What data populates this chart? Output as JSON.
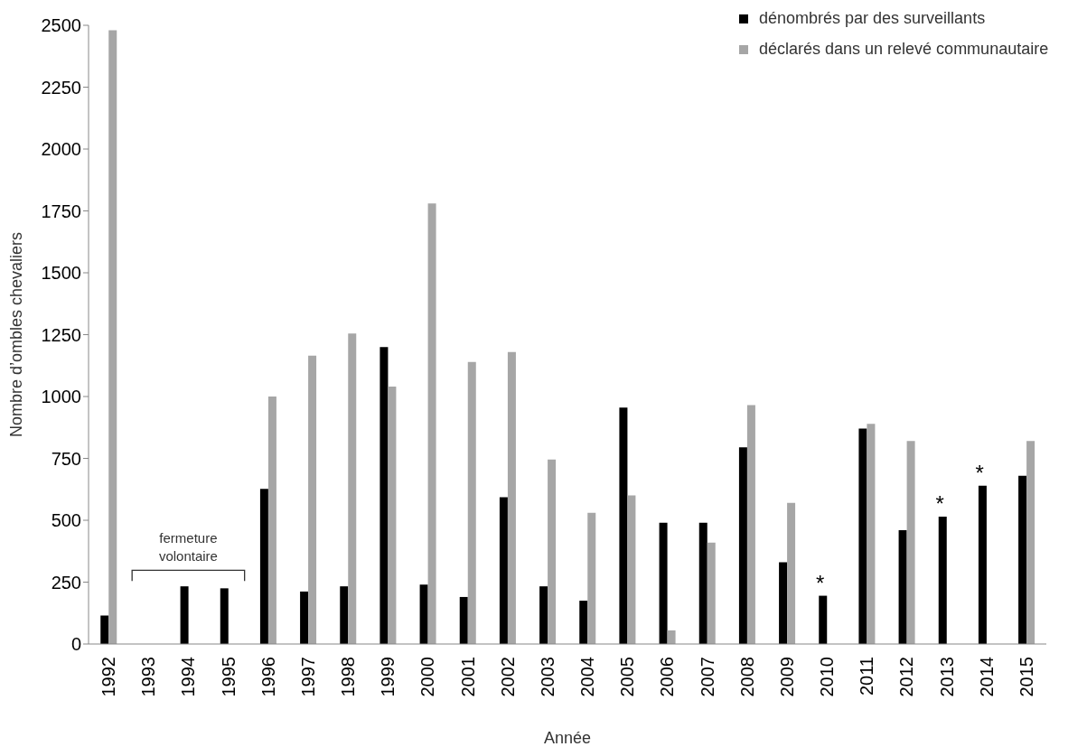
{
  "chart_data": {
    "type": "bar",
    "xlabel": "Année",
    "ylabel": "Nombre d’ombles chevaliers",
    "categories": [
      "1992",
      "1993",
      "1994",
      "1995",
      "1996",
      "1997",
      "1998",
      "1999",
      "2000",
      "2001",
      "2002",
      "2003",
      "2004",
      "2005",
      "2006",
      "2007",
      "2008",
      "2009",
      "2010",
      "2011",
      "2012",
      "2013",
      "2014",
      "2015"
    ],
    "series": [
      {
        "name": "dénombrés par des surveillants",
        "color": "#000000",
        "values": [
          115,
          null,
          233,
          225,
          627,
          212,
          233,
          1200,
          240,
          190,
          593,
          233,
          175,
          955,
          490,
          490,
          795,
          330,
          195,
          870,
          460,
          515,
          640,
          680
        ]
      },
      {
        "name": "déclarés dans un relevé communautaire",
        "color": "#a6a6a6",
        "values": [
          2480,
          null,
          null,
          null,
          1000,
          1165,
          1255,
          1040,
          1780,
          1140,
          1180,
          745,
          530,
          600,
          55,
          410,
          965,
          570,
          null,
          890,
          820,
          null,
          null,
          820
        ]
      }
    ],
    "ylim": [
      0,
      2500
    ],
    "yticks": [
      0,
      250,
      500,
      750,
      1000,
      1250,
      1500,
      1750,
      2000,
      2250,
      2500
    ],
    "legend": "top right",
    "marker": "square",
    "annotations": [
      "fermeture volontaire",
      {
        "text": "*",
        "x": "2010",
        "y": 195
      },
      {
        "text": "*",
        "x": "2013",
        "y": 515
      },
      {
        "text": "*",
        "x": "2014",
        "y": 640
      }
    ]
  }
}
